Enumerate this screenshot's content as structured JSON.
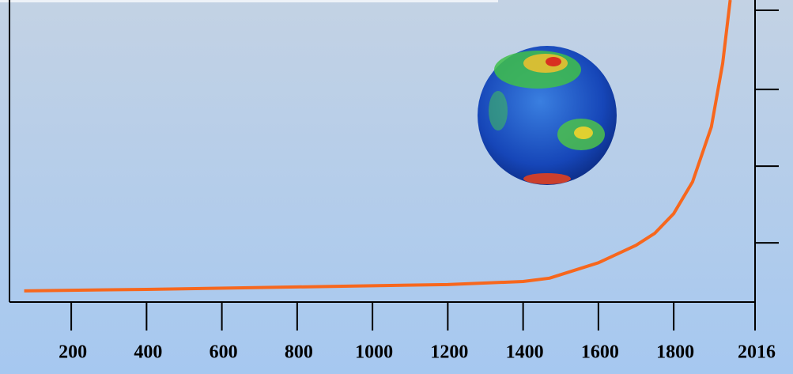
{
  "chart_data": {
    "type": "line",
    "x": [
      75,
      400,
      800,
      1200,
      1400,
      1470,
      1600,
      1700,
      1750,
      1800,
      1850,
      1900,
      1930,
      1950
    ],
    "series": [
      {
        "color": "#f7671d",
        "values": [
          3.7,
          4.2,
          5,
          5.8,
          6.8,
          7.9,
          13,
          18.8,
          22.8,
          29.3,
          39.8,
          58,
          79,
          100
        ]
      }
    ],
    "xlim": [
      36,
      2016
    ],
    "xticks": [
      200,
      400,
      600,
      800,
      1000,
      1200,
      1400,
      1600,
      1800,
      2016
    ],
    "ylim": [
      0,
      100
    ],
    "yticks": [
      19.6,
      45,
      70.4,
      96.6
    ]
  }
}
